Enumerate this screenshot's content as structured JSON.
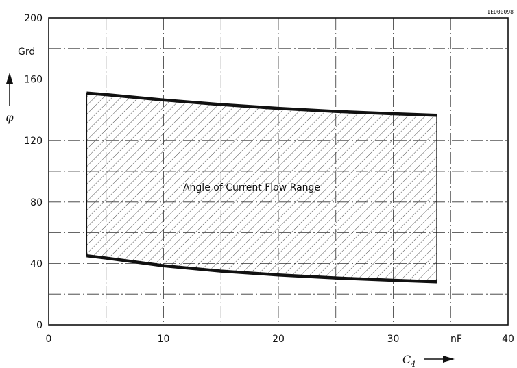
{
  "chart_data": {
    "type": "area",
    "figure_code": "IED00098",
    "xlabel": "C4",
    "xunit": "nF",
    "ylabel": "φ",
    "yunit": "Grd",
    "xlim": [
      0,
      40
    ],
    "ylim": [
      0,
      200
    ],
    "xticks": [
      0,
      10,
      20,
      30,
      40
    ],
    "yticks": [
      0,
      40,
      80,
      120,
      160,
      200
    ],
    "grid": true,
    "annotation": "Angle of Current Flow Range",
    "series": [
      {
        "role": "upper",
        "x": [
          3.3,
          5,
          10,
          15,
          20,
          25,
          30,
          33.8
        ],
        "values": [
          151,
          150,
          146.5,
          143.5,
          141,
          139,
          137.5,
          136.5
        ]
      },
      {
        "role": "lower",
        "x": [
          3.3,
          5,
          10,
          15,
          20,
          25,
          30,
          33.8
        ],
        "values": [
          45,
          43.5,
          38.5,
          35,
          32.5,
          30.5,
          29,
          28
        ]
      }
    ]
  }
}
